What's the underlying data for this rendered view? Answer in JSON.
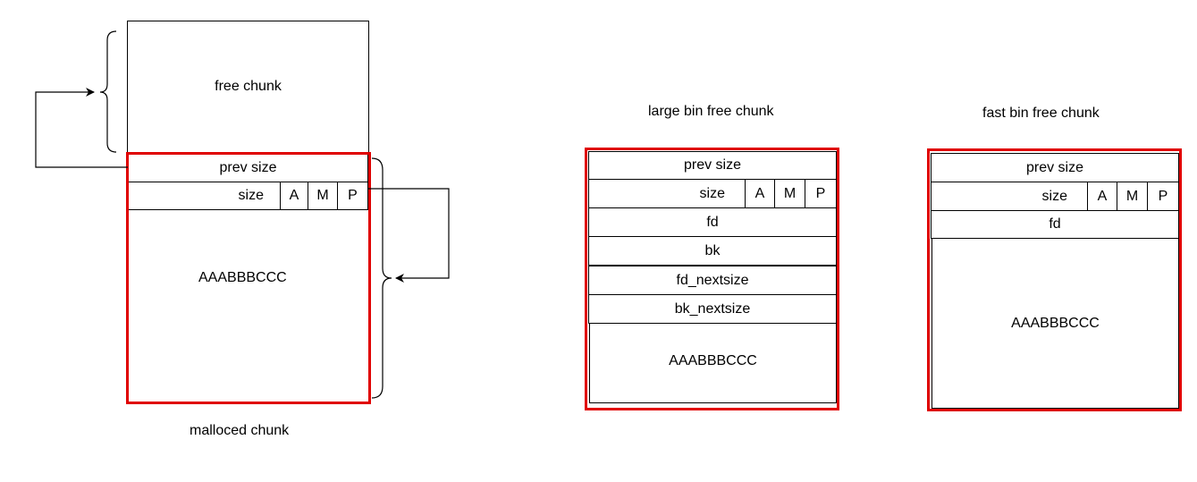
{
  "diagram_1": {
    "caption": "malloced chunk",
    "free_chunk_label": "free chunk",
    "prev_size": "prev size",
    "size": "size",
    "flag_a": "A",
    "flag_m": "M",
    "flag_p": "P",
    "data": "AAABBBCCC"
  },
  "diagram_2": {
    "title": "large bin free chunk",
    "prev_size": "prev size",
    "size": "size",
    "flag_a": "A",
    "flag_m": "M",
    "flag_p": "P",
    "fd": "fd",
    "bk": "bk",
    "fd_nextsize": "fd_nextsize",
    "bk_nextsize": "bk_nextsize",
    "data": "AAABBBCCC"
  },
  "diagram_3": {
    "title": "fast bin free chunk",
    "prev_size": "prev size",
    "size": "size",
    "flag_a": "A",
    "flag_m": "M",
    "flag_p": "P",
    "fd": "fd",
    "data": "AAABBBCCC"
  },
  "colors": {
    "frame": "#e00000",
    "line": "#000000"
  }
}
